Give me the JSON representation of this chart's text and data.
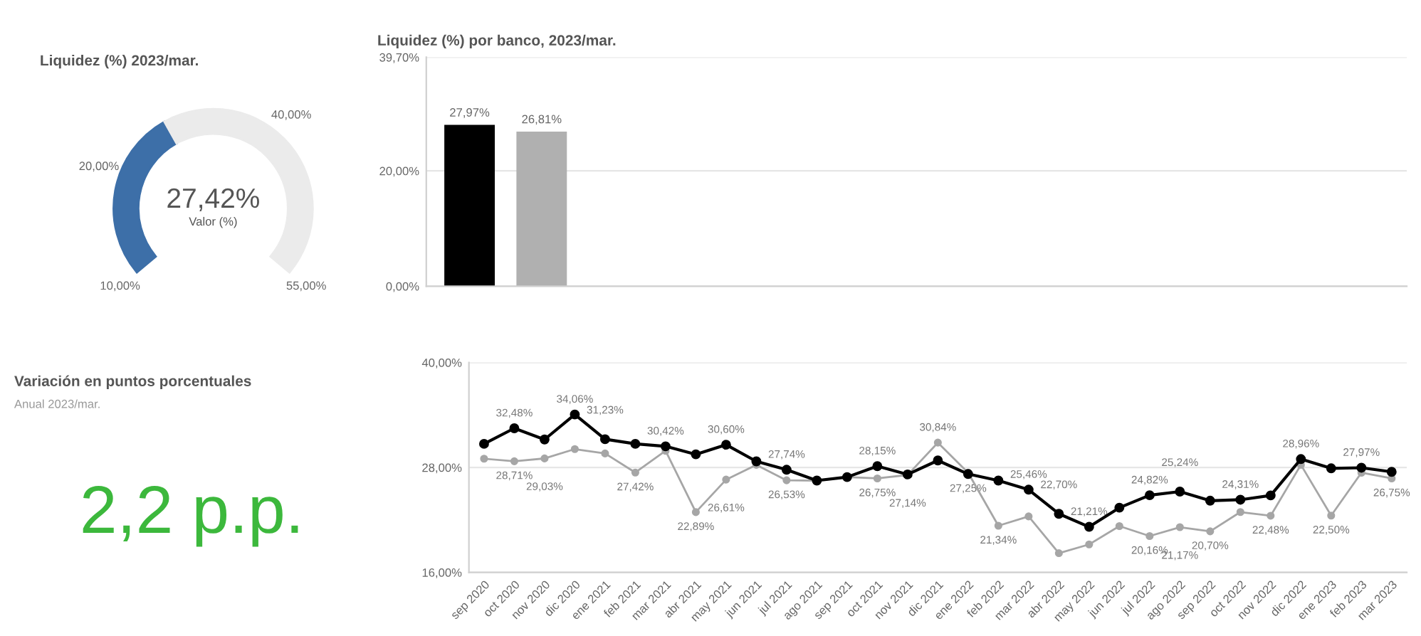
{
  "chart_data": [
    {
      "type": "donut",
      "title": "Liquidez (%) 2023/mar.",
      "categories": [
        null,
        null
      ],
      "values": [
        38.7,
        61.3
      ],
      "colors": [
        "#3d6fa8",
        "#ebebeb"
      ],
      "annotations": [
        "27,42%",
        "Valor (%)",
        "10,00%",
        "20,00%",
        "40,00%",
        "55,00%"
      ]
    },
    {
      "type": "bar",
      "title": "Liquidez (%) por banco, 2023/mar.",
      "categories": [
        null,
        null
      ],
      "values": [
        27.97,
        26.81
      ],
      "value_labels": [
        "27,97%",
        "26,81%"
      ],
      "colors": [
        "#000000",
        "#b0b0b0"
      ],
      "ylim": [
        0,
        39.7
      ],
      "yticks": [
        {
          "value": 0,
          "label": "0,00%"
        },
        {
          "value": 20,
          "label": "20,00%"
        },
        {
          "value": 39.7,
          "label": "39,70%"
        }
      ],
      "grid": "y"
    },
    {
      "type": "other",
      "title": "Variación en puntos porcentuales",
      "subtitle": "Anual 2023/mar.",
      "values": [
        2.2
      ],
      "value_labels": [
        "2,2 p.p."
      ],
      "colors": [
        "#3cb83c"
      ]
    },
    {
      "type": "line",
      "categories": [
        "sep 2020",
        "oct 2020",
        "nov 2020",
        "dic 2020",
        "ene 2021",
        "feb 2021",
        "mar 2021",
        "abr 2021",
        "may 2021",
        "jun 2021",
        "jul 2021",
        "ago 2021",
        "sep 2021",
        "oct 2021",
        "nov 2021",
        "dic 2021",
        "ene 2022",
        "feb 2022",
        "mar 2022",
        "abr 2022",
        "may 2022",
        "jun 2022",
        "jul 2022",
        "ago 2022",
        "sep 2022",
        "oct 2022",
        "nov 2022",
        "dic 2022",
        "ene 2023",
        "feb 2023",
        "mar 2023"
      ],
      "series": [
        {
          "color": "#000000",
          "values": [
            30.7,
            32.48,
            31.2,
            34.06,
            31.23,
            30.7,
            30.42,
            29.5,
            30.6,
            28.7,
            27.74,
            26.5,
            26.9,
            28.15,
            27.2,
            28.8,
            27.25,
            26.5,
            25.46,
            22.7,
            21.21,
            23.4,
            24.82,
            25.24,
            24.2,
            24.31,
            24.8,
            28.96,
            27.9,
            27.97,
            27.5
          ],
          "value_labels": [
            null,
            "32,48%",
            null,
            "34,06%",
            "31,23%",
            null,
            "30,42%",
            null,
            "30,60%",
            null,
            "27,74%",
            null,
            null,
            "28,15%",
            null,
            null,
            "27,25%",
            null,
            "25,46%",
            "22,70%",
            "21,21%",
            null,
            "24,82%",
            "25,24%",
            null,
            "24,31%",
            null,
            "28,96%",
            null,
            "27,97%",
            null
          ]
        },
        {
          "color": "#a6a6a6",
          "values": [
            29.0,
            28.71,
            29.03,
            30.1,
            29.6,
            27.42,
            29.9,
            22.89,
            26.61,
            28.3,
            26.53,
            26.5,
            26.9,
            26.75,
            27.14,
            30.84,
            27.4,
            21.34,
            22.4,
            18.2,
            19.2,
            21.3,
            20.16,
            21.17,
            20.7,
            22.9,
            22.48,
            28.3,
            22.5,
            27.4,
            26.75
          ],
          "value_labels": [
            null,
            "28,71%",
            "29,03%",
            null,
            null,
            "27,42%",
            null,
            "22,89%",
            "26,61%",
            null,
            "26,53%",
            null,
            null,
            "26,75%",
            "27,14%",
            "30,84%",
            null,
            "21,34%",
            null,
            null,
            null,
            null,
            "20,16%",
            "21,17%",
            "20,70%",
            null,
            "22,48%",
            null,
            "22,50%",
            null,
            "26,75%"
          ]
        }
      ],
      "marker": "circle",
      "ylim": [
        16,
        40
      ],
      "yticks": [
        {
          "value": 16,
          "label": "16,00%"
        },
        {
          "value": 28,
          "label": "28,00%"
        },
        {
          "value": 40,
          "label": "40,00%"
        }
      ],
      "grid": "y"
    }
  ]
}
